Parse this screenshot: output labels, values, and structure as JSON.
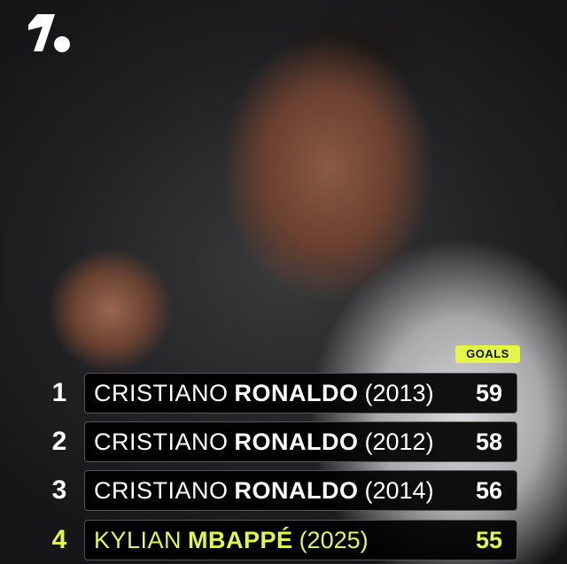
{
  "brand": {
    "logo": "OneFootball logo",
    "accent": "#e3f74a"
  },
  "header": {
    "goals_label": "GOALS"
  },
  "rows": [
    {
      "rank": "1",
      "first": "CRISTIANO",
      "last": "RONALDO",
      "year": "(2013)",
      "goals": "59",
      "highlight": false
    },
    {
      "rank": "2",
      "first": "CRISTIANO",
      "last": "RONALDO",
      "year": "(2012)",
      "goals": "58",
      "highlight": false
    },
    {
      "rank": "3",
      "first": "CRISTIANO",
      "last": "RONALDO",
      "year": "(2014)",
      "goals": "56",
      "highlight": false
    },
    {
      "rank": "4",
      "first": "KYLIAN",
      "last": "MBAPPÉ",
      "year": "(2025)",
      "goals": "55",
      "highlight": true
    }
  ]
}
